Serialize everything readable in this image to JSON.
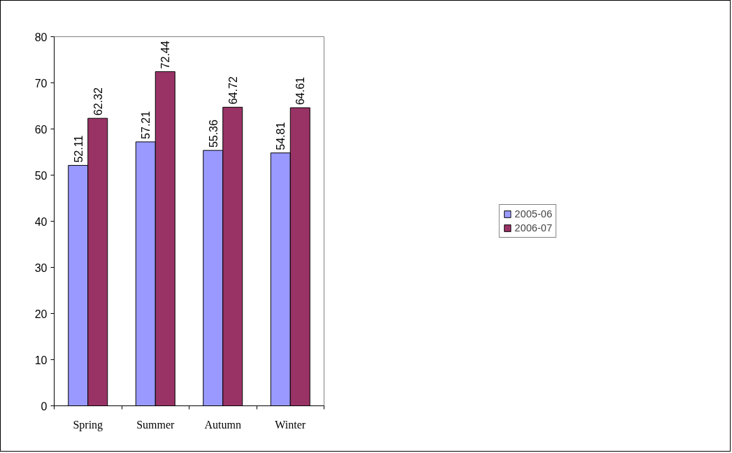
{
  "chart_data": {
    "type": "bar",
    "categories": [
      "Spring",
      "Summer",
      "Autumn",
      "Winter"
    ],
    "series": [
      {
        "name": "2005-06",
        "color": "#9999ff",
        "values": [
          52.11,
          57.21,
          55.36,
          54.81
        ]
      },
      {
        "name": "2006-07",
        "color": "#993366",
        "values": [
          62.32,
          72.44,
          64.72,
          64.61
        ]
      }
    ],
    "ylim": [
      0,
      80
    ],
    "yticks": [
      0,
      10,
      20,
      30,
      40,
      50,
      60,
      70,
      80
    ],
    "data_labels": true,
    "legend": "right"
  }
}
